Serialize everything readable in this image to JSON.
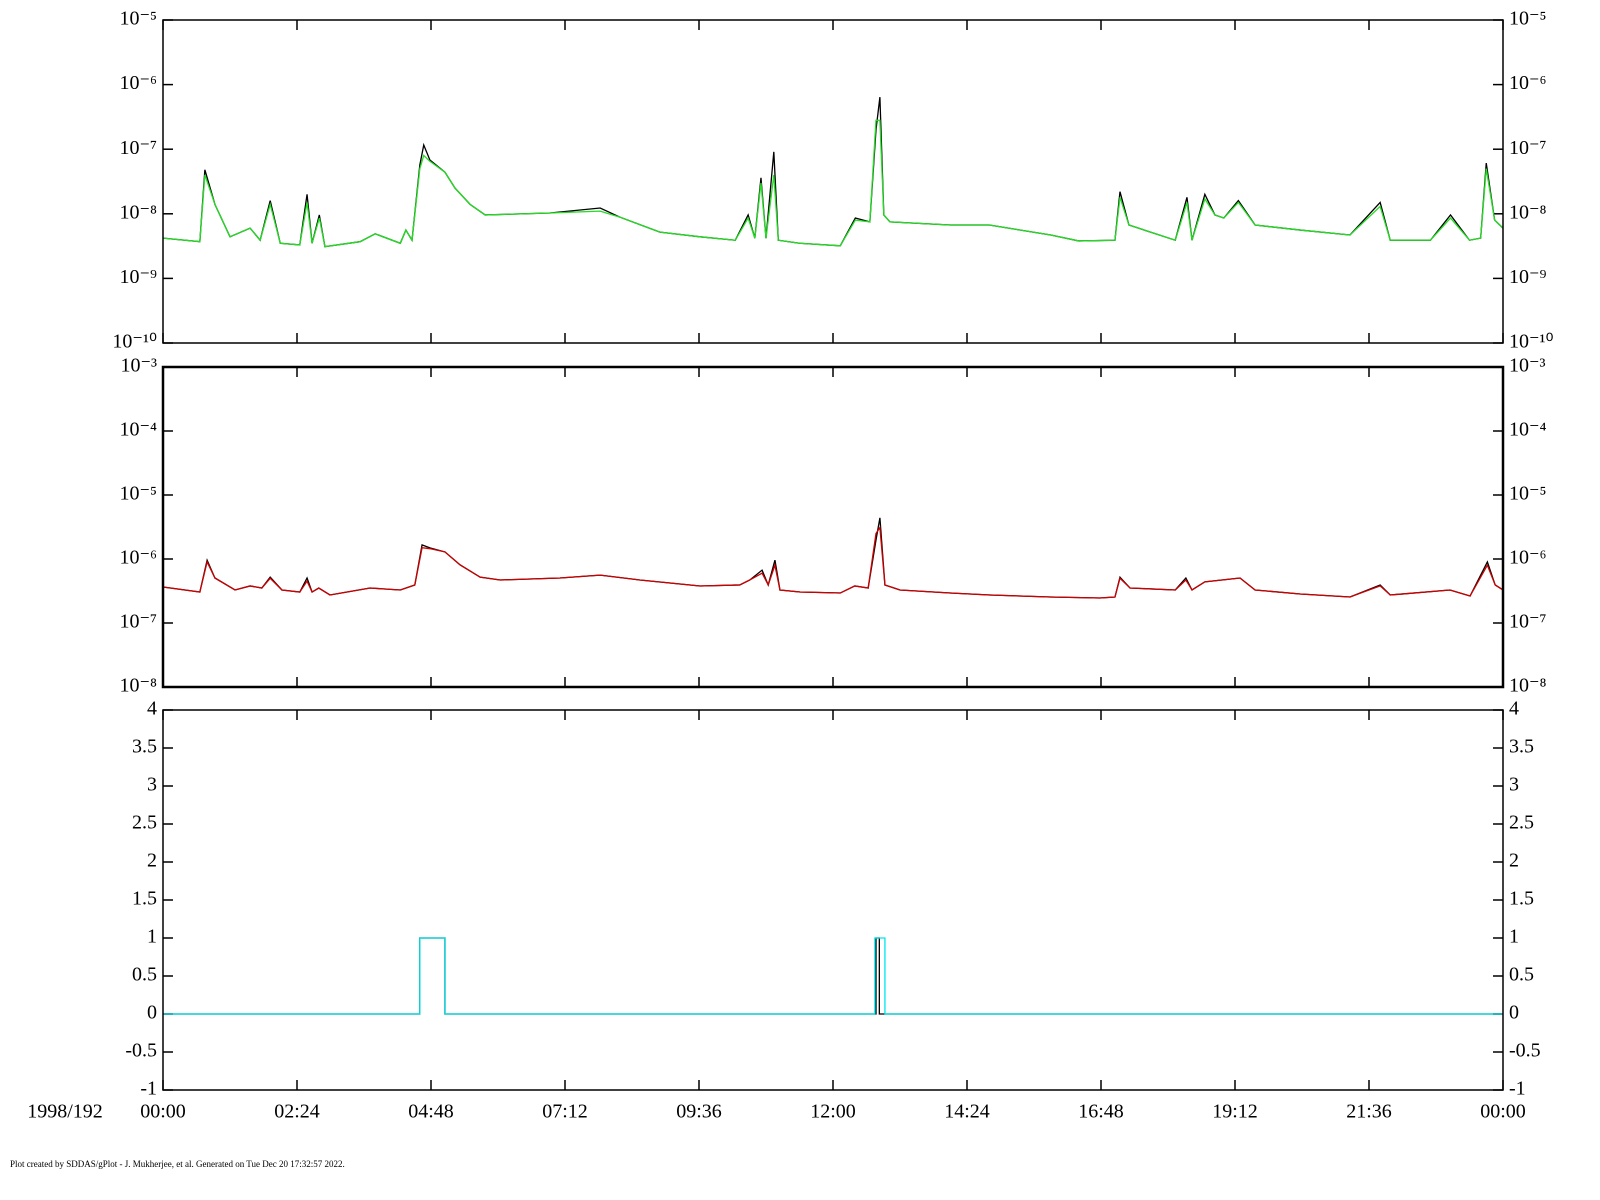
{
  "chart_data": [
    {
      "type": "line",
      "yscale": "log",
      "xlim": [
        0,
        24
      ],
      "ylim": [
        1e-10,
        1e-05
      ],
      "yticks": [
        {
          "value": 1e-10,
          "label": "10⁻¹⁰"
        },
        {
          "value": 1e-09,
          "label": "10⁻⁹"
        },
        {
          "value": 1e-08,
          "label": "10⁻⁸"
        },
        {
          "value": 1e-07,
          "label": "10⁻⁷"
        },
        {
          "value": 1e-06,
          "label": "10⁻⁶"
        },
        {
          "value": 1e-05,
          "label": "10⁻⁵"
        }
      ],
      "x": [
        0,
        0.66,
        0.75,
        0.93,
        1.2,
        1.56,
        1.74,
        1.92,
        2.1,
        2.45,
        2.58,
        2.67,
        2.8,
        2.9,
        3.53,
        3.8,
        4.25,
        4.35,
        4.46,
        4.6,
        4.67,
        4.78,
        5.05,
        5.23,
        5.5,
        5.77,
        6.93,
        7.83,
        8.18,
        8.9,
        9.62,
        10.25,
        10.48,
        10.6,
        10.71,
        10.8,
        10.94,
        11.02,
        11.4,
        12.13,
        12.4,
        12.66,
        12.77,
        12.84,
        12.91,
        13.02,
        14.1,
        14.8,
        15.9,
        16.4,
        17.05,
        17.14,
        17.3,
        18.13,
        18.34,
        18.43,
        18.66,
        18.84,
        19.0,
        19.26,
        19.56,
        20.37,
        21.26,
        21.8,
        21.98,
        22.7,
        23.06,
        23.4,
        23.6,
        23.7,
        23.85,
        24
      ],
      "series": [
        {
          "color": "#000000",
          "values": [
            4.2e-09,
            3.7e-09,
            4.8e-08,
            1.4e-08,
            4.4e-09,
            6e-09,
            3.9e-09,
            1.6e-08,
            3.5e-09,
            3.3e-09,
            2e-08,
            3.5e-09,
            9.6e-09,
            3.1e-09,
            3.7e-09,
            4.9e-09,
            3.5e-09,
            5.6e-09,
            3.9e-09,
            5.7e-08,
            1.16e-07,
            6.8e-08,
            4.4e-08,
            2.5e-08,
            1.4e-08,
            9.6e-09,
            1.03e-08,
            1.23e-08,
            8.9e-09,
            5.2e-09,
            4.4e-09,
            3.9e-09,
            9.6e-09,
            4.2e-09,
            3.6e-08,
            4.2e-09,
            9.1e-08,
            3.9e-09,
            3.5e-09,
            3.2e-09,
            8.6e-09,
            7.5e-09,
            2e-07,
            6.4e-07,
            9.6e-09,
            7.5e-09,
            6.7e-09,
            6.7e-09,
            4.7e-09,
            3.8e-09,
            3.9e-09,
            2.2e-08,
            6.7e-09,
            3.9e-09,
            1.8e-08,
            3.9e-09,
            2e-08,
            9.6e-09,
            8.6e-09,
            1.6e-08,
            6.7e-09,
            5.6e-09,
            4.7e-09,
            1.5e-08,
            3.9e-09,
            3.9e-09,
            9.6e-09,
            3.9e-09,
            4.2e-09,
            6.1e-08,
            8e-09,
            6e-09
          ]
        },
        {
          "color": "#22dd22",
          "values": [
            4.2e-09,
            3.7e-09,
            4e-08,
            1.4e-08,
            4.4e-09,
            6e-09,
            3.9e-09,
            1.4e-08,
            3.5e-09,
            3.3e-09,
            1.5e-08,
            3.5e-09,
            8.6e-09,
            3.1e-09,
            3.7e-09,
            4.9e-09,
            3.5e-09,
            5.6e-09,
            3.9e-09,
            5e-08,
            8e-08,
            6.5e-08,
            4.4e-08,
            2.5e-08,
            1.4e-08,
            9.6e-09,
            1.03e-08,
            1.1e-08,
            8.9e-09,
            5.2e-09,
            4.4e-09,
            3.9e-09,
            8.6e-09,
            4.2e-09,
            3e-08,
            4.2e-09,
            4e-08,
            3.9e-09,
            3.5e-09,
            3.2e-09,
            8e-09,
            7.5e-09,
            2.8e-07,
            2.8e-07,
            9.6e-09,
            7.5e-09,
            6.7e-09,
            6.7e-09,
            4.7e-09,
            3.8e-09,
            3.9e-09,
            1.8e-08,
            6.7e-09,
            3.9e-09,
            1.5e-08,
            3.9e-09,
            1.7e-08,
            9.6e-09,
            8.6e-09,
            1.5e-08,
            6.7e-09,
            5.6e-09,
            4.7e-09,
            1.3e-08,
            3.9e-09,
            3.9e-09,
            8.6e-09,
            3.9e-09,
            4.2e-09,
            5e-08,
            8e-09,
            6e-09
          ]
        }
      ]
    },
    {
      "type": "line",
      "yscale": "log",
      "xlim": [
        0,
        24
      ],
      "ylim": [
        1e-08,
        0.001
      ],
      "yticks": [
        {
          "value": 1e-08,
          "label": "10⁻⁸"
        },
        {
          "value": 1e-07,
          "label": "10⁻⁷"
        },
        {
          "value": 1e-06,
          "label": "10⁻⁶"
        },
        {
          "value": 1e-05,
          "label": "10⁻⁵"
        },
        {
          "value": 0.0001,
          "label": "10⁻⁴"
        },
        {
          "value": 0.001,
          "label": "10⁻³"
        }
      ],
      "x": [
        0,
        0.66,
        0.79,
        0.93,
        1.29,
        1.56,
        1.77,
        1.92,
        2.13,
        2.45,
        2.58,
        2.67,
        2.79,
        2.99,
        3.71,
        4.25,
        4.51,
        4.64,
        4.78,
        5.05,
        5.32,
        5.68,
        6.04,
        7.11,
        7.83,
        8.54,
        9.62,
        10.33,
        10.51,
        10.73,
        10.84,
        10.96,
        11.05,
        11.41,
        12.13,
        12.39,
        12.63,
        12.77,
        12.84,
        12.93,
        13.2,
        14.1,
        14.81,
        15.89,
        16.78,
        17.05,
        17.14,
        17.32,
        18.13,
        18.32,
        18.43,
        18.66,
        19.29,
        19.56,
        20.37,
        21.26,
        21.8,
        21.98,
        23.05,
        23.41,
        23.72,
        23.86,
        24
      ],
      "series": [
        {
          "color": "#000000",
          "values": [
            3.65e-07,
            3.05e-07,
            9.6e-07,
            5.05e-07,
            3.28e-07,
            3.79e-07,
            3.52e-07,
            5.2e-07,
            3.28e-07,
            3.05e-07,
            5.05e-07,
            3.05e-07,
            3.52e-07,
            2.74e-07,
            3.52e-07,
            3.28e-07,
            3.93e-07,
            1.66e-06,
            1.49e-06,
            1.29e-06,
            8.1e-07,
            5.2e-07,
            4.7e-07,
            5.05e-07,
            5.6e-07,
            4.7e-07,
            3.79e-07,
            3.93e-07,
            4.7e-07,
            6.7e-07,
            3.93e-07,
            9.6e-07,
            3.28e-07,
            3.05e-07,
            2.94e-07,
            3.79e-07,
            3.52e-07,
            1.98e-06,
            4.4e-06,
            3.93e-07,
            3.28e-07,
            2.94e-07,
            2.74e-07,
            2.55e-07,
            2.46e-07,
            2.55e-07,
            5.2e-07,
            3.52e-07,
            3.28e-07,
            5.05e-07,
            3.28e-07,
            4.4e-07,
            5.05e-07,
            3.28e-07,
            2.84e-07,
            2.55e-07,
            3.93e-07,
            2.74e-07,
            3.28e-07,
            2.64e-07,
            9e-07,
            3.93e-07,
            3.28e-07
          ]
        },
        {
          "color": "#cc0000",
          "values": [
            3.65e-07,
            3.05e-07,
            9e-07,
            5.05e-07,
            3.28e-07,
            3.79e-07,
            3.52e-07,
            5e-07,
            3.28e-07,
            3.05e-07,
            4.5e-07,
            3.05e-07,
            3.52e-07,
            2.74e-07,
            3.52e-07,
            3.28e-07,
            3.93e-07,
            1.5e-06,
            1.45e-06,
            1.29e-06,
            8.1e-07,
            5.2e-07,
            4.7e-07,
            5.05e-07,
            5.6e-07,
            4.7e-07,
            3.79e-07,
            3.93e-07,
            4.7e-07,
            6e-07,
            3.93e-07,
            8e-07,
            3.28e-07,
            3.05e-07,
            2.94e-07,
            3.79e-07,
            3.52e-07,
            2.5e-06,
            3.1e-06,
            3.93e-07,
            3.28e-07,
            2.94e-07,
            2.74e-07,
            2.55e-07,
            2.46e-07,
            2.55e-07,
            5e-07,
            3.52e-07,
            3.28e-07,
            4.7e-07,
            3.28e-07,
            4.4e-07,
            5.05e-07,
            3.28e-07,
            2.84e-07,
            2.55e-07,
            3.8e-07,
            2.74e-07,
            3.28e-07,
            2.64e-07,
            8e-07,
            3.93e-07,
            3.28e-07
          ]
        }
      ]
    },
    {
      "type": "step",
      "yscale": "linear",
      "xlim": [
        0,
        24
      ],
      "ylim": [
        -1,
        4
      ],
      "yticks": [
        -1,
        -0.5,
        0,
        0.5,
        1,
        1.5,
        2,
        2.5,
        3,
        3.5,
        4
      ],
      "xticks": [
        {
          "value": 0,
          "label": "00:00"
        },
        {
          "value": 2.4,
          "label": "02:24"
        },
        {
          "value": 4.8,
          "label": "04:48"
        },
        {
          "value": 7.2,
          "label": "07:12"
        },
        {
          "value": 9.6,
          "label": "09:36"
        },
        {
          "value": 12,
          "label": "12:00"
        },
        {
          "value": 14.4,
          "label": "14:24"
        },
        {
          "value": 16.8,
          "label": "16:48"
        },
        {
          "value": 19.2,
          "label": "19:12"
        },
        {
          "value": 21.6,
          "label": "21:36"
        },
        {
          "value": 24,
          "label": "00:00"
        }
      ],
      "x_label": "1998/192",
      "x": [
        0,
        4.6,
        5.05,
        12.75,
        12.77,
        12.83,
        12.93,
        24
      ],
      "series": [
        {
          "color": "#000000",
          "values": [
            0,
            1,
            0,
            0,
            1,
            0,
            0,
            0
          ]
        },
        {
          "color": "#00e5ee",
          "values": [
            0,
            1,
            0,
            1,
            1,
            1,
            0,
            0
          ]
        }
      ]
    }
  ],
  "footer": "Plot created by SDDAS/gPlot - J. Mukherjee, et al.  Generated on Tue Dec 20 17:32:57 2022."
}
